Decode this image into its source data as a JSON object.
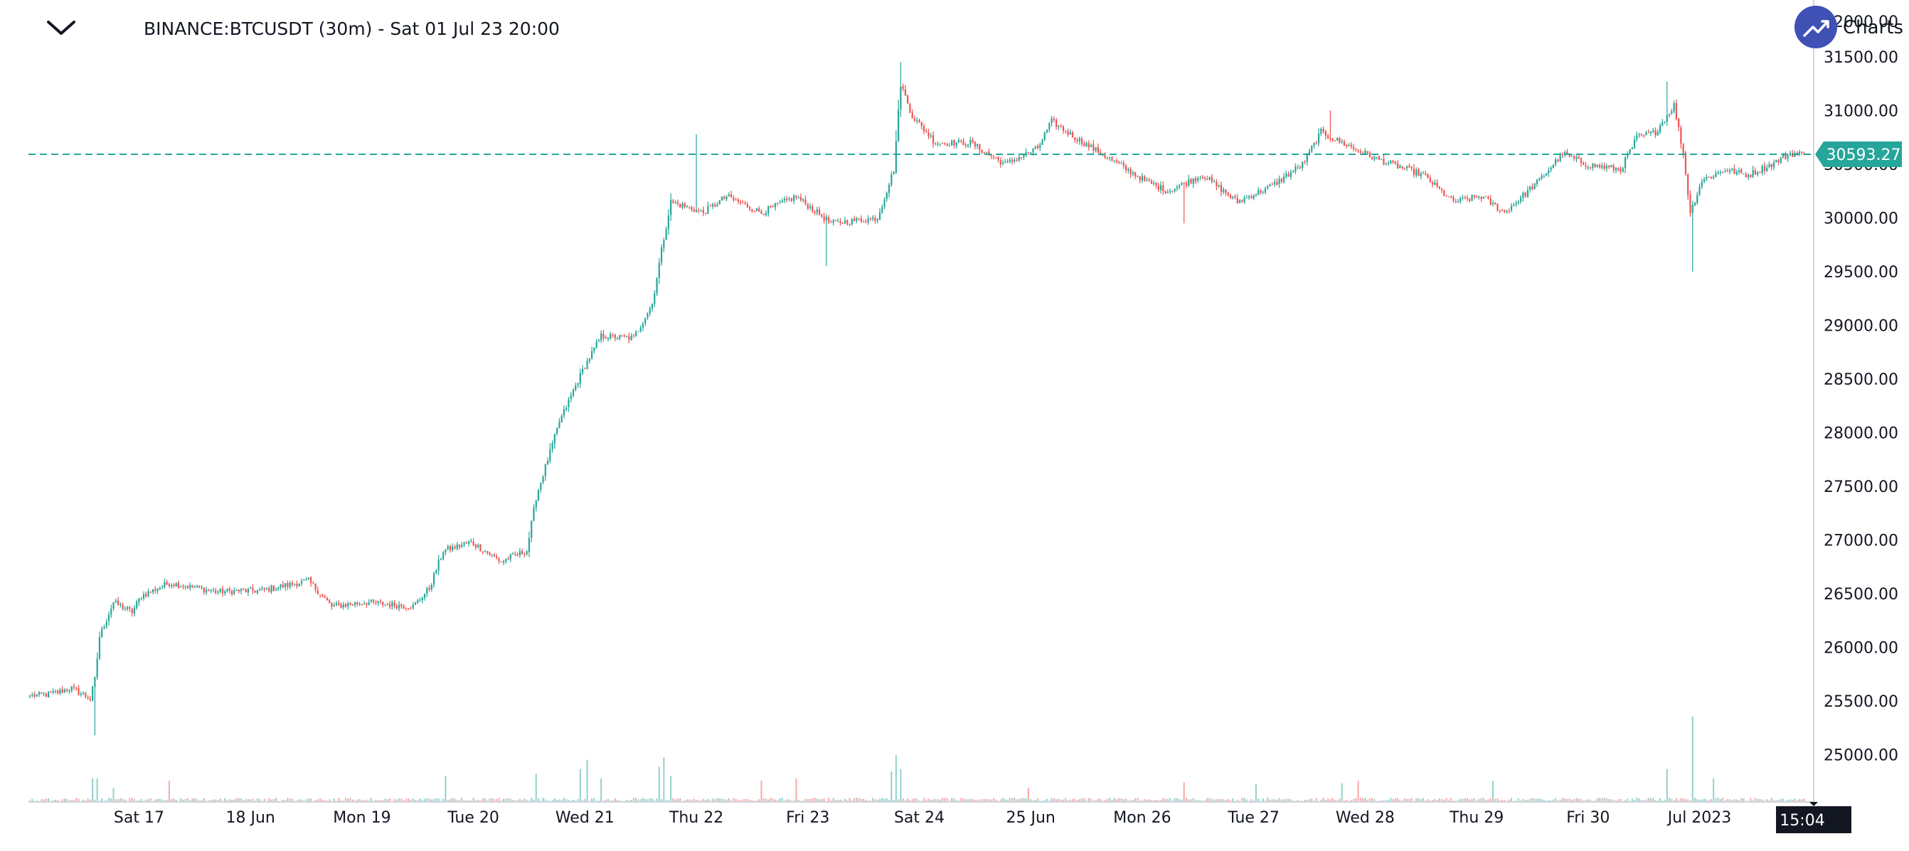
{
  "header": {
    "collapse_icon": "chevron-down-icon",
    "symbol_title": "BINANCE:BTCUSDT (30m) - Sat 01 Jul 23 20:00",
    "brand_icon": "trending-up-icon",
    "brand_label": "Charts",
    "brand_value": "32000.00"
  },
  "colors": {
    "up": "#26a69a",
    "down": "#ef5350",
    "price_line": "#26a69a",
    "axis_text": "#131722",
    "brand_circle": "#3f51b5",
    "time_tag_bg": "#131722"
  },
  "chart_data": {
    "type": "candlestick",
    "symbol": "BINANCE:BTCUSDT",
    "interval": "30m",
    "y_ticks": [
      31500,
      31000,
      30500,
      30000,
      29500,
      29000,
      28500,
      28000,
      27500,
      27000,
      26500,
      26000,
      25500,
      25000
    ],
    "y_tick_labels": [
      "31500.00",
      "31000.00",
      "30500.00",
      "30000.00",
      "29500.00",
      "29000.00",
      "28500.00",
      "28000.00",
      "27500.00",
      "27000.00",
      "26500.00",
      "26000.00",
      "25500.00",
      "25000.00"
    ],
    "ylim": [
      24560,
      32000
    ],
    "x_tick_labels": [
      "Sat 17",
      "18 Jun",
      "Mon 19",
      "Tue 20",
      "Wed 21",
      "Thu 22",
      "Fri 23",
      "Sat 24",
      "25 Jun",
      "Mon 26",
      "Tue 27",
      "Wed 28",
      "Thu 29",
      "Fri 30",
      "Jul 2023"
    ],
    "x_tick_index": [
      47,
      95,
      143,
      191,
      239,
      287,
      335,
      383,
      431,
      479,
      527,
      575,
      623,
      671,
      719
    ],
    "last_price": 30593.27,
    "last_price_label": "30593.27",
    "time_label": "15:04",
    "anchors": [
      [
        0,
        25550
      ],
      [
        8,
        25560
      ],
      [
        18,
        25620
      ],
      [
        26,
        25520
      ],
      [
        28,
        25700
      ],
      [
        30,
        26100
      ],
      [
        36,
        26420
      ],
      [
        44,
        26330
      ],
      [
        48,
        26480
      ],
      [
        60,
        26600
      ],
      [
        80,
        26520
      ],
      [
        100,
        26530
      ],
      [
        120,
        26620
      ],
      [
        130,
        26380
      ],
      [
        145,
        26420
      ],
      [
        165,
        26380
      ],
      [
        172,
        26550
      ],
      [
        178,
        26900
      ],
      [
        190,
        26980
      ],
      [
        203,
        26800
      ],
      [
        214,
        26900
      ],
      [
        218,
        27400
      ],
      [
        228,
        28100
      ],
      [
        238,
        28580
      ],
      [
        246,
        28900
      ],
      [
        260,
        28880
      ],
      [
        268,
        29200
      ],
      [
        272,
        29700
      ],
      [
        276,
        30150
      ],
      [
        290,
        30050
      ],
      [
        300,
        30200
      ],
      [
        315,
        30050
      ],
      [
        330,
        30200
      ],
      [
        345,
        29950
      ],
      [
        365,
        30000
      ],
      [
        372,
        30450
      ],
      [
        375,
        31250
      ],
      [
        380,
        30950
      ],
      [
        390,
        30700
      ],
      [
        405,
        30700
      ],
      [
        420,
        30500
      ],
      [
        434,
        30650
      ],
      [
        440,
        30900
      ],
      [
        450,
        30750
      ],
      [
        465,
        30550
      ],
      [
        480,
        30350
      ],
      [
        490,
        30250
      ],
      [
        505,
        30400
      ],
      [
        520,
        30150
      ],
      [
        535,
        30300
      ],
      [
        548,
        30500
      ],
      [
        556,
        30800
      ],
      [
        565,
        30700
      ],
      [
        580,
        30550
      ],
      [
        600,
        30400
      ],
      [
        613,
        30150
      ],
      [
        625,
        30200
      ],
      [
        635,
        30050
      ],
      [
        650,
        30350
      ],
      [
        660,
        30600
      ],
      [
        670,
        30500
      ],
      [
        685,
        30450
      ],
      [
        692,
        30750
      ],
      [
        700,
        30800
      ],
      [
        708,
        31050
      ],
      [
        712,
        30600
      ],
      [
        715,
        30050
      ],
      [
        720,
        30350
      ],
      [
        730,
        30450
      ],
      [
        740,
        30400
      ],
      [
        750,
        30500
      ],
      [
        758,
        30600
      ],
      [
        764,
        30593
      ]
    ],
    "total_bars": 764,
    "volume_spikes": [
      [
        27,
        0.5
      ],
      [
        29,
        0.5
      ],
      [
        36,
        0.3
      ],
      [
        60,
        0.45
      ],
      [
        179,
        0.55
      ],
      [
        218,
        0.6
      ],
      [
        237,
        0.7
      ],
      [
        240,
        0.9
      ],
      [
        246,
        0.5
      ],
      [
        271,
        0.75
      ],
      [
        273,
        0.95
      ],
      [
        276,
        0.55
      ],
      [
        315,
        0.45
      ],
      [
        330,
        0.5
      ],
      [
        371,
        0.65
      ],
      [
        373,
        1.0
      ],
      [
        375,
        0.7
      ],
      [
        430,
        0.3
      ],
      [
        497,
        0.42
      ],
      [
        528,
        0.38
      ],
      [
        565,
        0.4
      ],
      [
        572,
        0.45
      ],
      [
        630,
        0.45
      ],
      [
        705,
        0.7
      ],
      [
        716,
        1.82
      ],
      [
        725,
        0.5
      ]
    ]
  }
}
